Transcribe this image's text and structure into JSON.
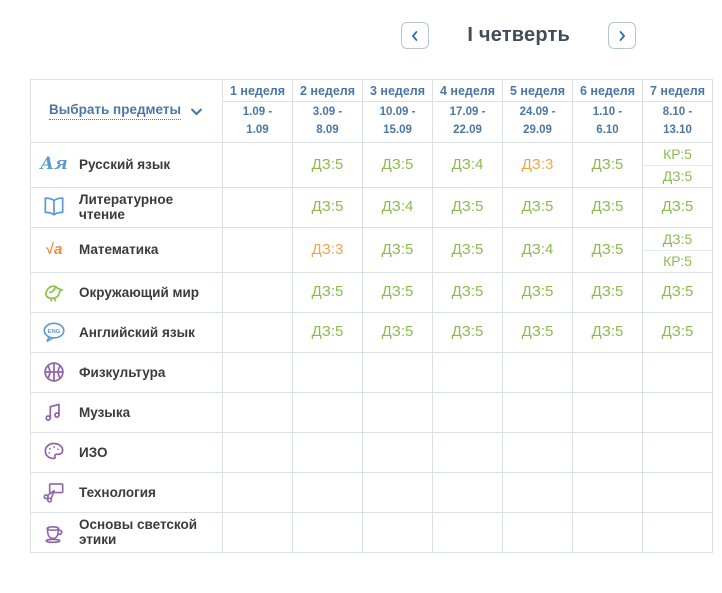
{
  "header": {
    "title": "I четверть",
    "prev_icon": "chevron-left-icon",
    "next_icon": "chevron-right-icon"
  },
  "filter": {
    "label": "Выбрать предметы",
    "icon": "chevron-down-icon"
  },
  "weeks": [
    {
      "label": "1 неделя",
      "dates": "1.09 - 1.09"
    },
    {
      "label": "2 неделя",
      "dates": "3.09 - 8.09"
    },
    {
      "label": "3 неделя",
      "dates": "10.09 - 15.09"
    },
    {
      "label": "4 неделя",
      "dates": "17.09 - 22.09"
    },
    {
      "label": "5 неделя",
      "dates": "24.09 - 29.09"
    },
    {
      "label": "6 неделя",
      "dates": "1.10 - 6.10"
    },
    {
      "label": "7 неделя",
      "dates": "8.10 - 13.10"
    }
  ],
  "subjects": [
    {
      "name": "Русский язык",
      "icon": "russian-language-icon",
      "icon_color": "#5b9bd5",
      "grades": [
        [],
        [
          {
            "label": "ДЗ:5",
            "tone": "green"
          }
        ],
        [
          {
            "label": "ДЗ:5",
            "tone": "green"
          }
        ],
        [
          {
            "label": "ДЗ:4",
            "tone": "green"
          }
        ],
        [
          {
            "label": "ДЗ:3",
            "tone": "orange"
          }
        ],
        [
          {
            "label": "ДЗ:5",
            "tone": "green"
          }
        ],
        [
          {
            "label": "КР:5",
            "tone": "green"
          },
          {
            "label": "ДЗ:5",
            "tone": "green"
          }
        ]
      ]
    },
    {
      "name": "Литературное чтение",
      "icon": "book-icon",
      "icon_color": "#5b9bd5",
      "grades": [
        [],
        [
          {
            "label": "ДЗ:5",
            "tone": "green"
          }
        ],
        [
          {
            "label": "ДЗ:4",
            "tone": "green"
          }
        ],
        [
          {
            "label": "ДЗ:5",
            "tone": "green"
          }
        ],
        [
          {
            "label": "ДЗ:5",
            "tone": "green"
          }
        ],
        [
          {
            "label": "ДЗ:5",
            "tone": "green"
          }
        ],
        [
          {
            "label": "ДЗ:5",
            "tone": "green"
          }
        ]
      ]
    },
    {
      "name": "Математика",
      "icon": "sqrt-icon",
      "icon_color": "#ee8d3c",
      "grades": [
        [],
        [
          {
            "label": "ДЗ:3",
            "tone": "orange"
          }
        ],
        [
          {
            "label": "ДЗ:5",
            "tone": "green"
          }
        ],
        [
          {
            "label": "ДЗ:5",
            "tone": "green"
          }
        ],
        [
          {
            "label": "ДЗ:4",
            "tone": "green"
          }
        ],
        [
          {
            "label": "ДЗ:5",
            "tone": "green"
          }
        ],
        [
          {
            "label": "ДЗ:5",
            "tone": "green"
          },
          {
            "label": "КР:5",
            "tone": "green"
          }
        ]
      ]
    },
    {
      "name": "Окружающий мир",
      "icon": "bird-icon",
      "icon_color": "#8cc152",
      "grades": [
        [],
        [
          {
            "label": "ДЗ:5",
            "tone": "green"
          }
        ],
        [
          {
            "label": "ДЗ:5",
            "tone": "green"
          }
        ],
        [
          {
            "label": "ДЗ:5",
            "tone": "green"
          }
        ],
        [
          {
            "label": "ДЗ:5",
            "tone": "green"
          }
        ],
        [
          {
            "label": "ДЗ:5",
            "tone": "green"
          }
        ],
        [
          {
            "label": "ДЗ:5",
            "tone": "green"
          }
        ]
      ]
    },
    {
      "name": "Английский язык",
      "icon": "eng-speech-bubble-icon",
      "icon_color": "#5b9bd5",
      "grades": [
        [],
        [
          {
            "label": "ДЗ:5",
            "tone": "green"
          }
        ],
        [
          {
            "label": "ДЗ:5",
            "tone": "green"
          }
        ],
        [
          {
            "label": "ДЗ:5",
            "tone": "green"
          }
        ],
        [
          {
            "label": "ДЗ:5",
            "tone": "green"
          }
        ],
        [
          {
            "label": "ДЗ:5",
            "tone": "green"
          }
        ],
        [
          {
            "label": "ДЗ:5",
            "tone": "green"
          }
        ]
      ]
    },
    {
      "name": "Физкультура",
      "icon": "basketball-icon",
      "icon_color": "#9165a8",
      "grades": [
        [],
        [],
        [],
        [],
        [],
        [],
        []
      ]
    },
    {
      "name": "Музыка",
      "icon": "music-notes-icon",
      "icon_color": "#9165a8",
      "grades": [
        [],
        [],
        [],
        [],
        [],
        [],
        []
      ]
    },
    {
      "name": "ИЗО",
      "icon": "palette-icon",
      "icon_color": "#9165a8",
      "grades": [
        [],
        [],
        [],
        [],
        [],
        [],
        []
      ]
    },
    {
      "name": "Технология",
      "icon": "scissors-icon",
      "icon_color": "#9165a8",
      "grades": [
        [],
        [],
        [],
        [],
        [],
        [],
        []
      ]
    },
    {
      "name": "Основы светской этики",
      "icon": "teacup-icon",
      "icon_color": "#9165a8",
      "grades": [
        [],
        [],
        [],
        [],
        [],
        [],
        []
      ]
    }
  ],
  "colors": {
    "grade-green": "#8cbb50",
    "grade-orange": "#eda84b",
    "header-blue": "#4a77a6",
    "title-color": "#404c5a",
    "subject-color": "#3b3b3b",
    "border-color": "#dcdfe3",
    "button-border": "#b7c6d3",
    "chevron-blue": "#2e6b9e"
  }
}
